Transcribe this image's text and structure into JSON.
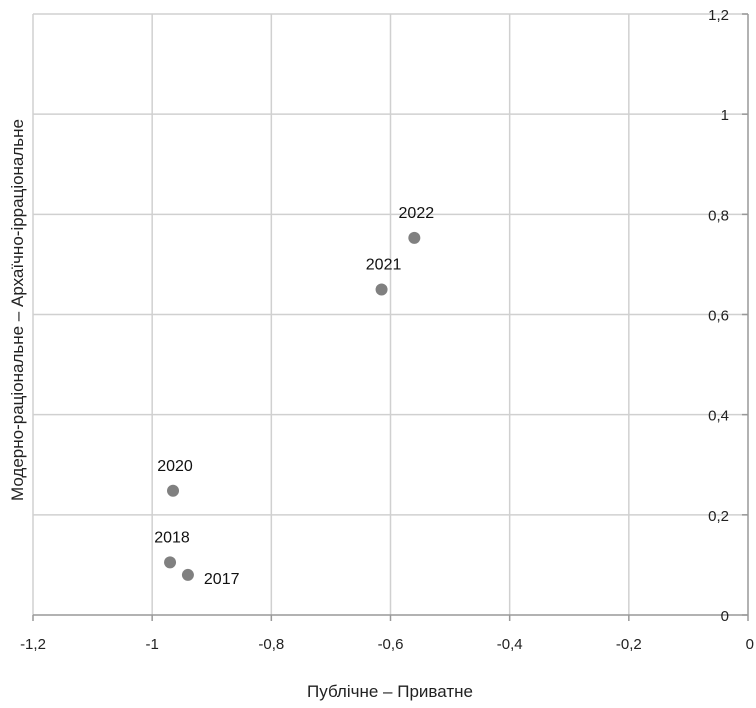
{
  "chart_data": {
    "type": "scatter",
    "xlabel": "Публічне – Приватне",
    "ylabel": "Модерно-раціональне – Архаїчно-ірраціональне",
    "xlim": [
      -1.2,
      0
    ],
    "ylim": [
      0,
      1.2
    ],
    "x_ticks": [
      -1.2,
      -1,
      -0.8,
      -0.6,
      -0.4,
      -0.2,
      0
    ],
    "x_tick_labels": [
      "-1,2",
      "-1",
      "-0,8",
      "-0,6",
      "-0,4",
      "-0,2",
      "0"
    ],
    "y_ticks": [
      0,
      0.2,
      0.4,
      0.6,
      0.8,
      1,
      1.2
    ],
    "y_tick_labels": [
      "0",
      "0,2",
      "0,4",
      "0,6",
      "0,8",
      "1",
      "1,2"
    ],
    "y_axis_side": "right",
    "grid": true,
    "colors": {
      "point": "#808080",
      "grid": "#d0d0d0",
      "axis": "#999999"
    },
    "points": [
      {
        "label": "2017",
        "x": -0.94,
        "y": 0.08,
        "label_side": "right"
      },
      {
        "label": "2018",
        "x": -0.97,
        "y": 0.105,
        "label_side": "above"
      },
      {
        "label": "2020",
        "x": -0.965,
        "y": 0.248,
        "label_side": "above"
      },
      {
        "label": "2021",
        "x": -0.615,
        "y": 0.65,
        "label_side": "above"
      },
      {
        "label": "2022",
        "x": -0.56,
        "y": 0.753,
        "label_side": "above"
      }
    ]
  }
}
